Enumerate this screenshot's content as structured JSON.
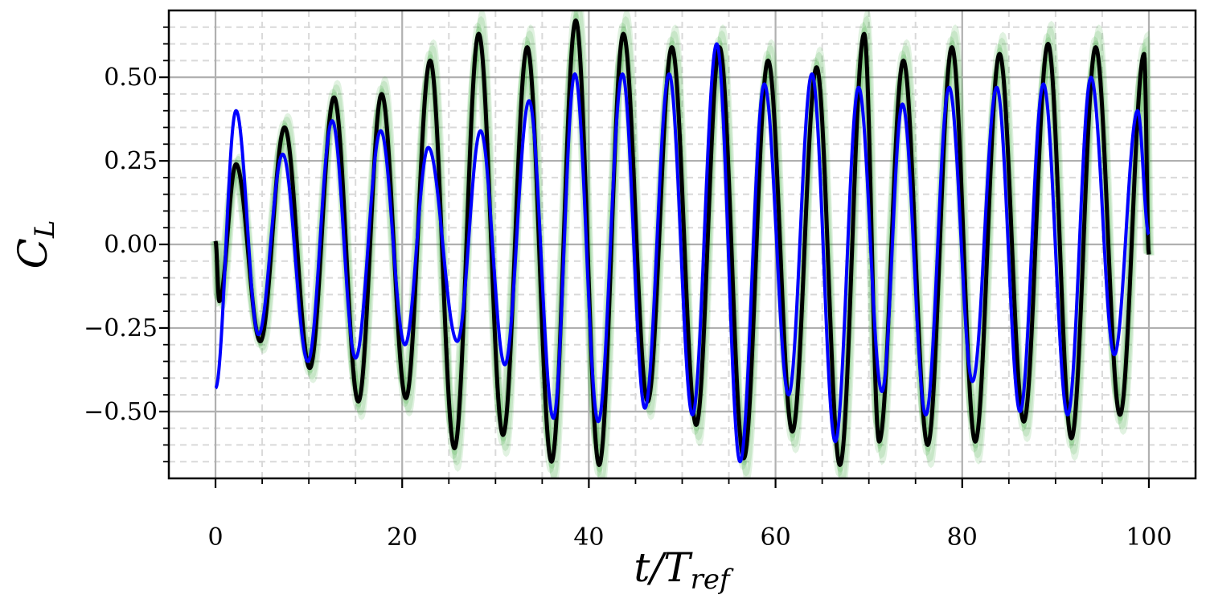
{
  "chart_data": {
    "type": "line",
    "title": "",
    "xlabel": {
      "main": "t/T",
      "sub": "ref"
    },
    "ylabel": {
      "main": "C",
      "sub": "L"
    },
    "xlim": [
      -5,
      105
    ],
    "ylim": [
      -0.7,
      0.7
    ],
    "x_ticks": [
      0,
      20,
      40,
      60,
      80,
      100
    ],
    "x_tick_labels": [
      "0",
      "20",
      "40",
      "60",
      "80",
      "100"
    ],
    "y_ticks": [
      -0.5,
      -0.25,
      0.0,
      0.25,
      0.5
    ],
    "y_tick_labels": [
      "−0.50",
      "−0.25",
      "0.00",
      "0.25",
      "0.50"
    ],
    "grid": {
      "major": true,
      "minor": true,
      "minor_style": "dashed"
    },
    "colors": {
      "reference": "#000000",
      "ensemble": "#2ca02c",
      "prediction": "#0000ff",
      "major_grid": "#b0b0b0",
      "minor_grid": "#d9d9d9"
    },
    "series": [
      {
        "role": "reference",
        "color": "#000000",
        "peaks": [
          [
            0.0,
            0.01
          ],
          [
            0.4,
            -0.17
          ],
          [
            2.2,
            0.24
          ],
          [
            4.8,
            -0.29
          ],
          [
            7.4,
            0.35
          ],
          [
            10.1,
            -0.37
          ],
          [
            12.7,
            0.44
          ],
          [
            15.3,
            -0.47
          ],
          [
            17.8,
            0.45
          ],
          [
            20.4,
            -0.46
          ],
          [
            23.0,
            0.55
          ],
          [
            25.6,
            -0.61
          ],
          [
            28.2,
            0.63
          ],
          [
            30.8,
            -0.57
          ],
          [
            33.4,
            0.59
          ],
          [
            36.0,
            -0.65
          ],
          [
            38.6,
            0.67
          ],
          [
            41.1,
            -0.66
          ],
          [
            43.7,
            0.63
          ],
          [
            46.3,
            -0.47
          ],
          [
            48.9,
            0.59
          ],
          [
            51.5,
            -0.54
          ],
          [
            54.0,
            0.59
          ],
          [
            56.6,
            -0.64
          ],
          [
            59.2,
            0.55
          ],
          [
            61.8,
            -0.56
          ],
          [
            64.4,
            0.53
          ],
          [
            66.9,
            -0.66
          ],
          [
            69.5,
            0.63
          ],
          [
            71.1,
            -0.59
          ],
          [
            73.7,
            0.55
          ],
          [
            76.3,
            -0.6
          ],
          [
            78.9,
            0.59
          ],
          [
            81.4,
            -0.59
          ],
          [
            84.0,
            0.57
          ],
          [
            86.6,
            -0.53
          ],
          [
            89.2,
            0.6
          ],
          [
            91.7,
            -0.58
          ],
          [
            94.3,
            0.59
          ],
          [
            96.9,
            -0.51
          ],
          [
            99.5,
            0.57
          ],
          [
            100.0,
            -0.03
          ]
        ]
      },
      {
        "role": "prediction",
        "color": "#0000ff",
        "peaks": [
          [
            0.0,
            -0.43
          ],
          [
            2.2,
            0.4
          ],
          [
            4.6,
            -0.27
          ],
          [
            7.2,
            0.27
          ],
          [
            9.9,
            -0.35
          ],
          [
            12.5,
            0.37
          ],
          [
            15.0,
            -0.34
          ],
          [
            17.7,
            0.34
          ],
          [
            20.3,
            -0.3
          ],
          [
            22.8,
            0.29
          ],
          [
            25.9,
            -0.29
          ],
          [
            28.4,
            0.34
          ],
          [
            31.0,
            -0.36
          ],
          [
            33.6,
            0.43
          ],
          [
            36.2,
            -0.52
          ],
          [
            38.5,
            0.51
          ],
          [
            41.0,
            -0.53
          ],
          [
            43.6,
            0.51
          ],
          [
            46.0,
            -0.49
          ],
          [
            48.6,
            0.51
          ],
          [
            51.1,
            -0.51
          ],
          [
            53.7,
            0.6
          ],
          [
            56.2,
            -0.65
          ],
          [
            58.8,
            0.48
          ],
          [
            61.4,
            -0.45
          ],
          [
            63.9,
            0.51
          ],
          [
            66.4,
            -0.59
          ],
          [
            68.9,
            0.47
          ],
          [
            71.4,
            -0.44
          ],
          [
            73.6,
            0.42
          ],
          [
            76.1,
            -0.51
          ],
          [
            78.6,
            0.47
          ],
          [
            81.1,
            -0.41
          ],
          [
            83.7,
            0.47
          ],
          [
            86.2,
            -0.5
          ],
          [
            88.7,
            0.48
          ],
          [
            91.3,
            -0.51
          ],
          [
            93.8,
            0.5
          ],
          [
            96.3,
            -0.33
          ],
          [
            98.8,
            0.4
          ],
          [
            100.0,
            0.03
          ]
        ]
      }
    ]
  }
}
